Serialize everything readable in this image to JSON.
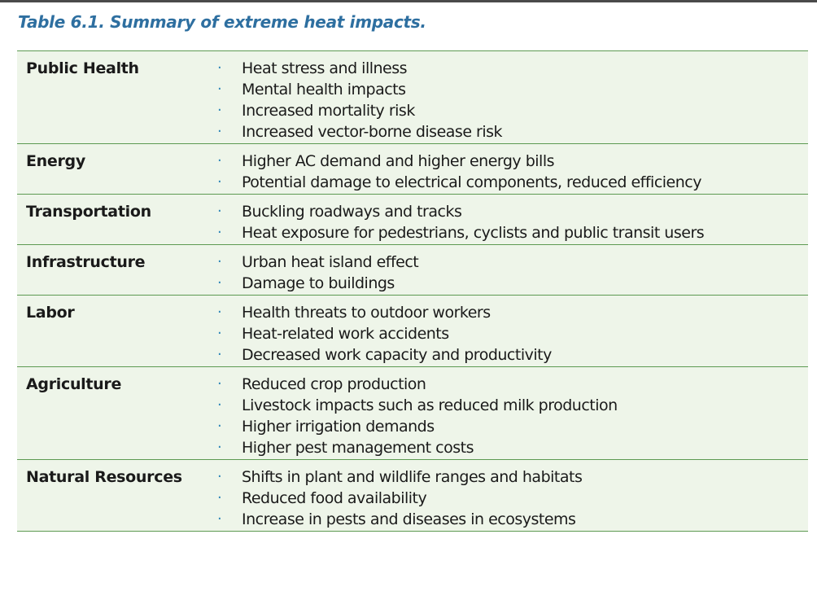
{
  "caption": "Table 6.1. Summary of extreme heat impacts.",
  "bullet_glyph": "·",
  "colors": {
    "caption": "#2e6fa0",
    "row_background": "#eef5e9",
    "rule": "#5d9a52",
    "bullet": "#2e86b8"
  },
  "rows": [
    {
      "category": "Public Health",
      "items": [
        "Heat stress and illness",
        "Mental health impacts",
        "Increased mortality risk",
        "Increased vector-borne disease risk"
      ]
    },
    {
      "category": "Energy",
      "items": [
        "Higher AC demand and higher energy bills",
        "Potential damage to electrical components, reduced efficiency"
      ]
    },
    {
      "category": "Transportation",
      "items": [
        "Buckling roadways and tracks",
        "Heat exposure for pedestrians, cyclists and public transit users"
      ]
    },
    {
      "category": "Infrastructure",
      "items": [
        "Urban heat island effect",
        "Damage to buildings"
      ]
    },
    {
      "category": "Labor",
      "items": [
        "Health threats to outdoor workers",
        "Heat-related work accidents",
        "Decreased work capacity and productivity"
      ]
    },
    {
      "category": "Agriculture",
      "items": [
        "Reduced crop production",
        "Livestock impacts such as reduced milk production",
        "Higher irrigation demands",
        "Higher pest management costs"
      ]
    },
    {
      "category": "Natural Resources",
      "items": [
        "Shifts in plant and wildlife ranges and habitats",
        "Reduced food availability",
        "Increase in pests and diseases in ecosystems"
      ]
    }
  ]
}
